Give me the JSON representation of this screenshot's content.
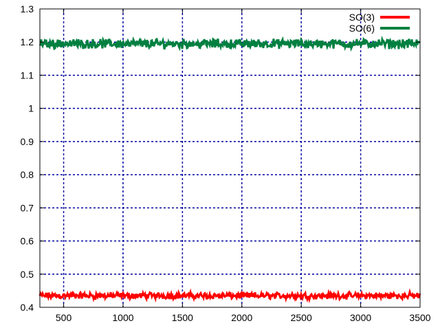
{
  "chart_data": {
    "type": "line",
    "title": "",
    "xlabel": "",
    "ylabel": "",
    "xlim": [
      300,
      3500
    ],
    "ylim": [
      0.4,
      1.3
    ],
    "grid": true,
    "legend_position": "top-right",
    "x_ticks": [
      500,
      1000,
      1500,
      2000,
      2500,
      3000,
      3500
    ],
    "x_tick_labels": [
      "500",
      "1000",
      "1500",
      "2000",
      "2500",
      "3000",
      "3500"
    ],
    "y_ticks": [
      0.4,
      0.5,
      0.6,
      0.7,
      0.8,
      0.9,
      1.0,
      1.1,
      1.2,
      1.3
    ],
    "y_tick_labels": [
      "0.4",
      "0.5",
      "0.6",
      "0.7",
      "0.8",
      "0.9",
      "1",
      "1.1",
      "1.2",
      "1.3"
    ],
    "series": [
      {
        "name": "SO(3)",
        "color": "#ff0000",
        "mean": 0.435,
        "amplitude": 0.012,
        "x_start": 300,
        "x_end": 3500
      },
      {
        "name": "SO(6)",
        "color": "#008040",
        "mean": 1.195,
        "amplitude": 0.017,
        "x_start": 300,
        "x_end": 3500
      }
    ],
    "grid_color": "#0000a0",
    "axis_color": "#000000"
  }
}
